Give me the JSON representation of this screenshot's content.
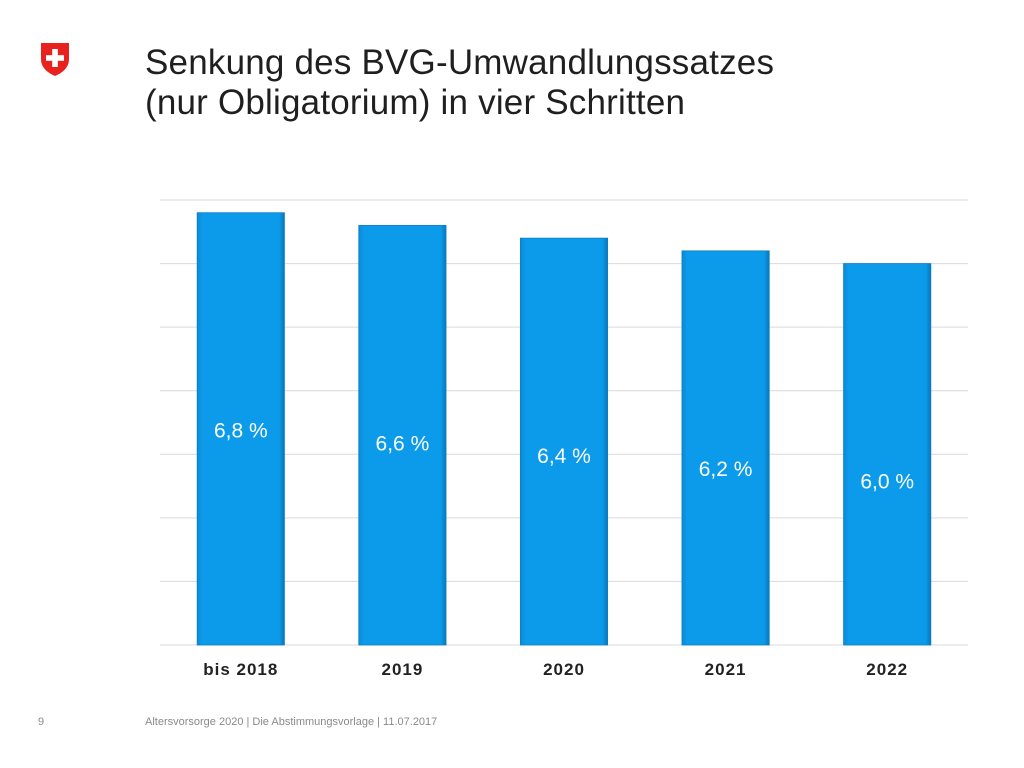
{
  "slide": {
    "title_line1": "Senkung des BVG-Umwandlungssatzes",
    "title_line2": "(nur Obligatorium) in vier Schritten",
    "page_number": "9",
    "footer": "Altersvorsorge 2020 | Die Abstimmungsvorlage | 11.07.2017"
  },
  "colors": {
    "bar": "#0B9BEA",
    "bar_edge": "#0A7FC4",
    "grid": "#d9d9d9",
    "logo_red": "#E8231F",
    "label_white": "#ffffff",
    "tick_text": "#222222"
  },
  "chart_data": {
    "type": "bar",
    "categories": [
      "bis 2018",
      "2019",
      "2020",
      "2021",
      "2022"
    ],
    "values": [
      6.8,
      6.6,
      6.4,
      6.2,
      6.0
    ],
    "data_labels": [
      "6,8 %",
      "6,6 %",
      "6,4 %",
      "6,2 %",
      "6,0 %"
    ],
    "title": "",
    "xlabel": "",
    "ylabel": "",
    "ylim": [
      0,
      7.0
    ],
    "gridlines": [
      1,
      2,
      3,
      4,
      5,
      6,
      7
    ],
    "grid": true,
    "legend": "none"
  }
}
